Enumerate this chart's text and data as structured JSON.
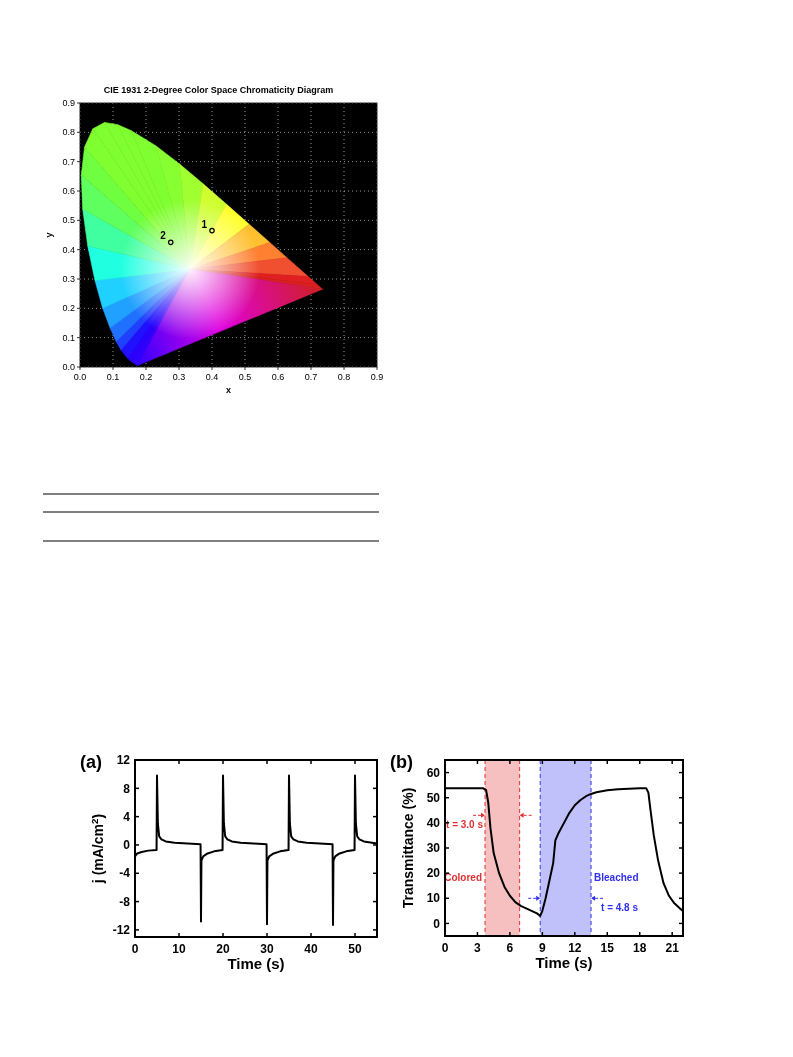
{
  "chart_data": [
    {
      "type": "scatter",
      "title": "CIE 1931 2-Degree Color Space Chromaticity Diagram",
      "xlabel": "x",
      "ylabel": "y",
      "x": [
        0.4,
        0.275
      ],
      "values": [
        0.465,
        0.425
      ],
      "color": "#000000",
      "marker": "circle",
      "xlim": [
        0,
        0.9
      ],
      "ylim": [
        0,
        0.9
      ],
      "xticks": [
        {
          "value": 0,
          "label": "0.0"
        },
        0.1,
        0.2,
        0.3,
        0.4,
        0.5,
        0.6,
        0.7,
        0.8,
        0.9
      ],
      "yticks": [
        {
          "value": 0,
          "label": "0.0"
        },
        0.1,
        0.2,
        0.3,
        0.4,
        0.5,
        0.6,
        0.7,
        0.8,
        0.9
      ],
      "grid": true,
      "annotations": [
        {
          "text": "1",
          "x": 0.4,
          "y": 0.465
        },
        {
          "text": "2",
          "x": 0.275,
          "y": 0.425
        }
      ]
    },
    {
      "type": "line",
      "title": "(a)",
      "xlabel": "Time (s)",
      "ylabel": "j (mA/cm$^{2}$)",
      "color": "#000000",
      "x": [
        0,
        0.5,
        1.5,
        3,
        4.9,
        5,
        5.2,
        5.5,
        6,
        7,
        9,
        12,
        14.9,
        15,
        15.1,
        15.5,
        16.5,
        18,
        19.9,
        20,
        20.2,
        20.5,
        21,
        22,
        24,
        27,
        29.9,
        30,
        30.1,
        30.5,
        31.5,
        33,
        34.9,
        35,
        35.2,
        35.5,
        36,
        37,
        39,
        42,
        44.9,
        45,
        45.1,
        45.5,
        46.5,
        48,
        49.9,
        50,
        50.2,
        50.5,
        51,
        52,
        55
      ],
      "values": [
        -1.6,
        -1.2,
        -1.0,
        -0.8,
        -0.7,
        9.8,
        3,
        1.2,
        0.8,
        0.5,
        0.3,
        0.2,
        0.1,
        -10.8,
        -2.2,
        -1.6,
        -1.2,
        -0.9,
        -0.7,
        9.8,
        3,
        1.2,
        0.8,
        0.5,
        0.3,
        0.2,
        0.1,
        -11.2,
        -2.2,
        -1.6,
        -1.2,
        -0.9,
        -0.7,
        9.8,
        3,
        1.2,
        0.8,
        0.5,
        0.3,
        0.2,
        0.1,
        -11.3,
        -2.2,
        -1.6,
        -1.2,
        -0.9,
        -0.7,
        9.8,
        3,
        1.2,
        0.8,
        0.5,
        0.2
      ],
      "xlim": [
        0,
        55
      ],
      "ylim": [
        -13,
        12
      ],
      "xticks": [
        0,
        10,
        20,
        30,
        40,
        50
      ],
      "yticks": [
        -12,
        -8,
        -4,
        0,
        4,
        8,
        12
      ]
    },
    {
      "type": "line",
      "title": "(b)",
      "xlabel": "Time (s)",
      "ylabel": "Transmittance (%)",
      "color": "#000000",
      "x": [
        0,
        3.5,
        3.8,
        4.0,
        4.2,
        4.5,
        5,
        5.5,
        6,
        6.5,
        7,
        7.5,
        8,
        8.5,
        8.8,
        9,
        9.3,
        9.6,
        10,
        10.2,
        10.5,
        11,
        11.5,
        12,
        12.5,
        13,
        13.5,
        14,
        15,
        16,
        17,
        18,
        18.6,
        18.8,
        19,
        19.3,
        19.7,
        20.2,
        20.7,
        21.2,
        21.7,
        22
      ],
      "values": [
        53.8,
        53.8,
        53,
        48,
        38,
        28,
        20,
        14.5,
        11,
        8.5,
        7,
        6,
        5,
        4,
        3,
        5,
        10,
        16,
        24,
        33,
        36,
        40,
        44,
        47,
        49,
        50.5,
        51.5,
        52.2,
        53,
        53.4,
        53.6,
        53.8,
        53.8,
        52,
        45,
        35,
        25,
        16,
        11,
        8,
        6,
        5
      ],
      "xlim": [
        0,
        22
      ],
      "ylim": [
        -5,
        65
      ],
      "xticks": [
        0,
        3,
        6,
        9,
        12,
        15,
        18,
        21
      ],
      "yticks": [
        0,
        10,
        20,
        30,
        40,
        50,
        60
      ],
      "bands": [
        {
          "axis": "x",
          "from": 3.7,
          "to": 6.9,
          "label": "t = 3.0 s",
          "color": "#e03030"
        },
        {
          "axis": "x",
          "from": 8.8,
          "to": 13.5,
          "label": "t = 4.8 s",
          "color": "#3030f0"
        }
      ],
      "ref_lines": [
        {
          "axis": "x",
          "value": 3.7,
          "color": "#e03030",
          "line_style": "dashed"
        },
        {
          "axis": "x",
          "value": 6.9,
          "color": "#e03030",
          "line_style": "dashed"
        },
        {
          "axis": "x",
          "value": 8.8,
          "color": "#3030f0",
          "line_style": "dashed"
        },
        {
          "axis": "x",
          "value": 13.5,
          "color": "#3030f0",
          "line_style": "dashed"
        }
      ],
      "annotations": [
        "Colored",
        "Bleached"
      ]
    }
  ]
}
